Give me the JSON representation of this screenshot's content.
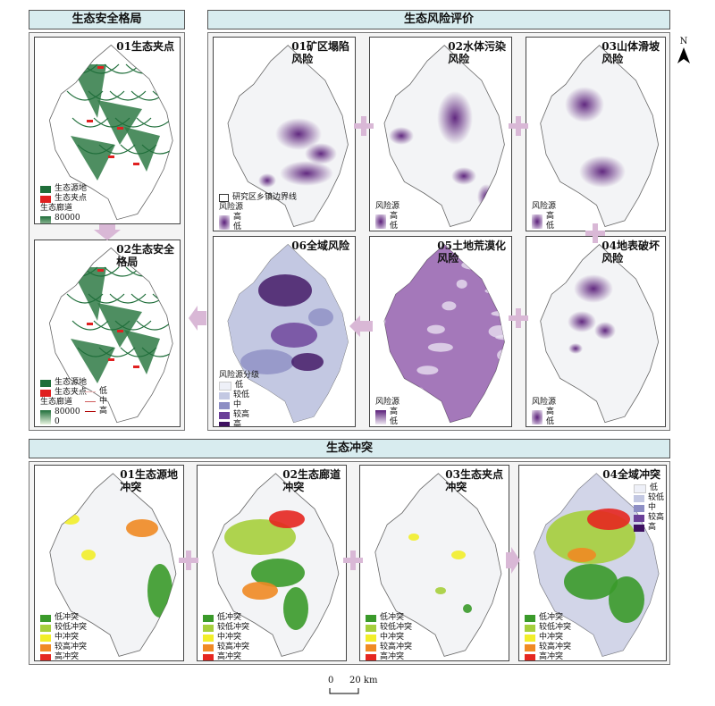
{
  "sections": {
    "pattern": "生态安全格局",
    "risk": "生态风险评价",
    "conflict": "生态冲突"
  },
  "north": "N",
  "pattern_panels": {
    "p1": {
      "title": "01生态夹点",
      "legend_items": [
        "生态源地",
        "生态夹点"
      ],
      "corridor_label": "生态廊道",
      "ramp_high": "80000",
      "ramp_low": "0"
    },
    "p2": {
      "title": "02生态安全\n格局",
      "legend_items": [
        "生态源地",
        "生态夹点"
      ],
      "corridor_label": "生态廊道",
      "ramp_high": "80000",
      "ramp_low": "0",
      "line_low": "低",
      "line_mid": "中",
      "line_high": "高"
    }
  },
  "risk_panels": {
    "p01": {
      "title": "01矿区塌陷\n风险",
      "boundary_label": "研究区乡镇边界线",
      "legend_title": "风险源",
      "high": "高",
      "low": "低"
    },
    "p02": {
      "title": "02水体污染\n风险",
      "legend_title": "风险源",
      "high": "高",
      "low": "低"
    },
    "p03": {
      "title": "03山体滑坡\n风险",
      "legend_title": "风险源",
      "high": "高",
      "low": "低"
    },
    "p04": {
      "title": "04地表破坏\n风险",
      "legend_title": "风险源",
      "high": "高",
      "low": "低"
    },
    "p05": {
      "title": "05土地荒漠化\n风险",
      "legend_title": "风险源",
      "high": "高",
      "low": "低"
    },
    "p06": {
      "title": "06全域风险",
      "legend_title": "风险源分级",
      "levels": [
        "低",
        "较低",
        "中",
        "较高",
        "高"
      ]
    }
  },
  "conflict_panels": {
    "c01": {
      "title": "01生态源地\n冲突"
    },
    "c02": {
      "title": "02生态廊道\n冲突"
    },
    "c03": {
      "title": "03生态夹点\n冲突"
    },
    "c04": {
      "title": "04全域冲突",
      "levels": [
        "低",
        "较低",
        "中",
        "较高",
        "高"
      ]
    }
  },
  "conflict_legend": [
    "低冲突",
    "较低冲突",
    "中冲突",
    "较高冲突",
    "高冲突"
  ],
  "colors": {
    "conflict": [
      "#3a9a2a",
      "#a6cf3c",
      "#f2ee2a",
      "#f08a24",
      "#e52620"
    ],
    "risk_levels": [
      "#eef0f8",
      "#c3c8e2",
      "#8d8ec4",
      "#6a3f98",
      "#3d1060"
    ],
    "risk_ramp_high": "#5a1f7a",
    "risk_ramp_low": "#f0eaf4",
    "source": "#1f6e3a",
    "pinch": "#e02020",
    "arrow": "#d9b8d6"
  },
  "scale": {
    "zero": "0",
    "label": "20 km"
  }
}
